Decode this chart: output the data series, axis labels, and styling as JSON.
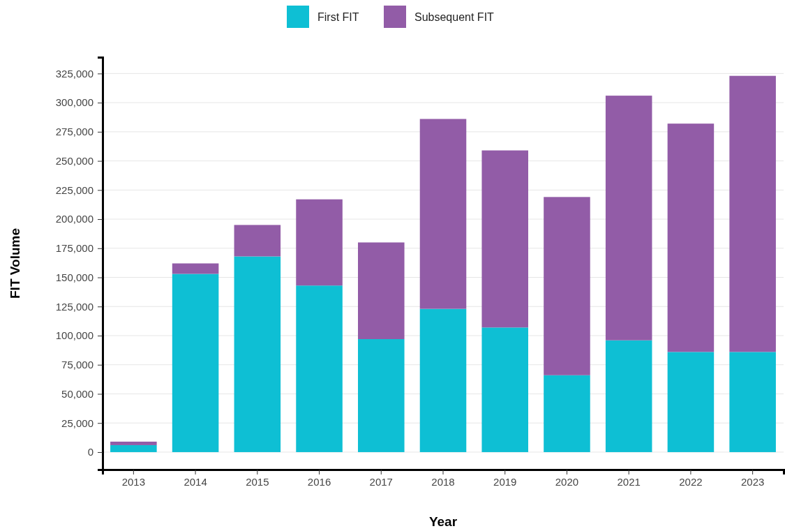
{
  "chart_data": {
    "type": "bar",
    "stacked": true,
    "xlabel": "Year",
    "ylabel": "FIT Volume",
    "categories": [
      "2013",
      "2014",
      "2015",
      "2016",
      "2017",
      "2018",
      "2019",
      "2020",
      "2021",
      "2022",
      "2023"
    ],
    "series": [
      {
        "name": "First FIT",
        "color": "#0ebfd4",
        "values": [
          6000,
          153000,
          168000,
          143000,
          97000,
          123000,
          107000,
          66000,
          96000,
          86000,
          86000
        ]
      },
      {
        "name": "Subsequent FIT",
        "color": "#925ca7",
        "values": [
          3000,
          9000,
          27000,
          74000,
          83000,
          163000,
          152000,
          153000,
          210000,
          196000,
          237000
        ]
      }
    ],
    "ylim": [
      -15000,
      339000
    ],
    "yticks": [
      {
        "value": 0,
        "label": "0"
      },
      {
        "value": 25000,
        "label": "25,000"
      },
      {
        "value": 50000,
        "label": "50,000"
      },
      {
        "value": 75000,
        "label": "75,000"
      },
      {
        "value": 100000,
        "label": "100,000"
      },
      {
        "value": 125000,
        "label": "125,000"
      },
      {
        "value": 150000,
        "label": "150,000"
      },
      {
        "value": 175000,
        "label": "175,000"
      },
      {
        "value": 200000,
        "label": "200,000"
      },
      {
        "value": 225000,
        "label": "225,000"
      },
      {
        "value": 250000,
        "label": "250,000"
      },
      {
        "value": 275000,
        "label": "275,000"
      },
      {
        "value": 300000,
        "label": "300,000"
      },
      {
        "value": 325000,
        "label": "325,000"
      }
    ],
    "grid": "y",
    "legend": "top"
  }
}
